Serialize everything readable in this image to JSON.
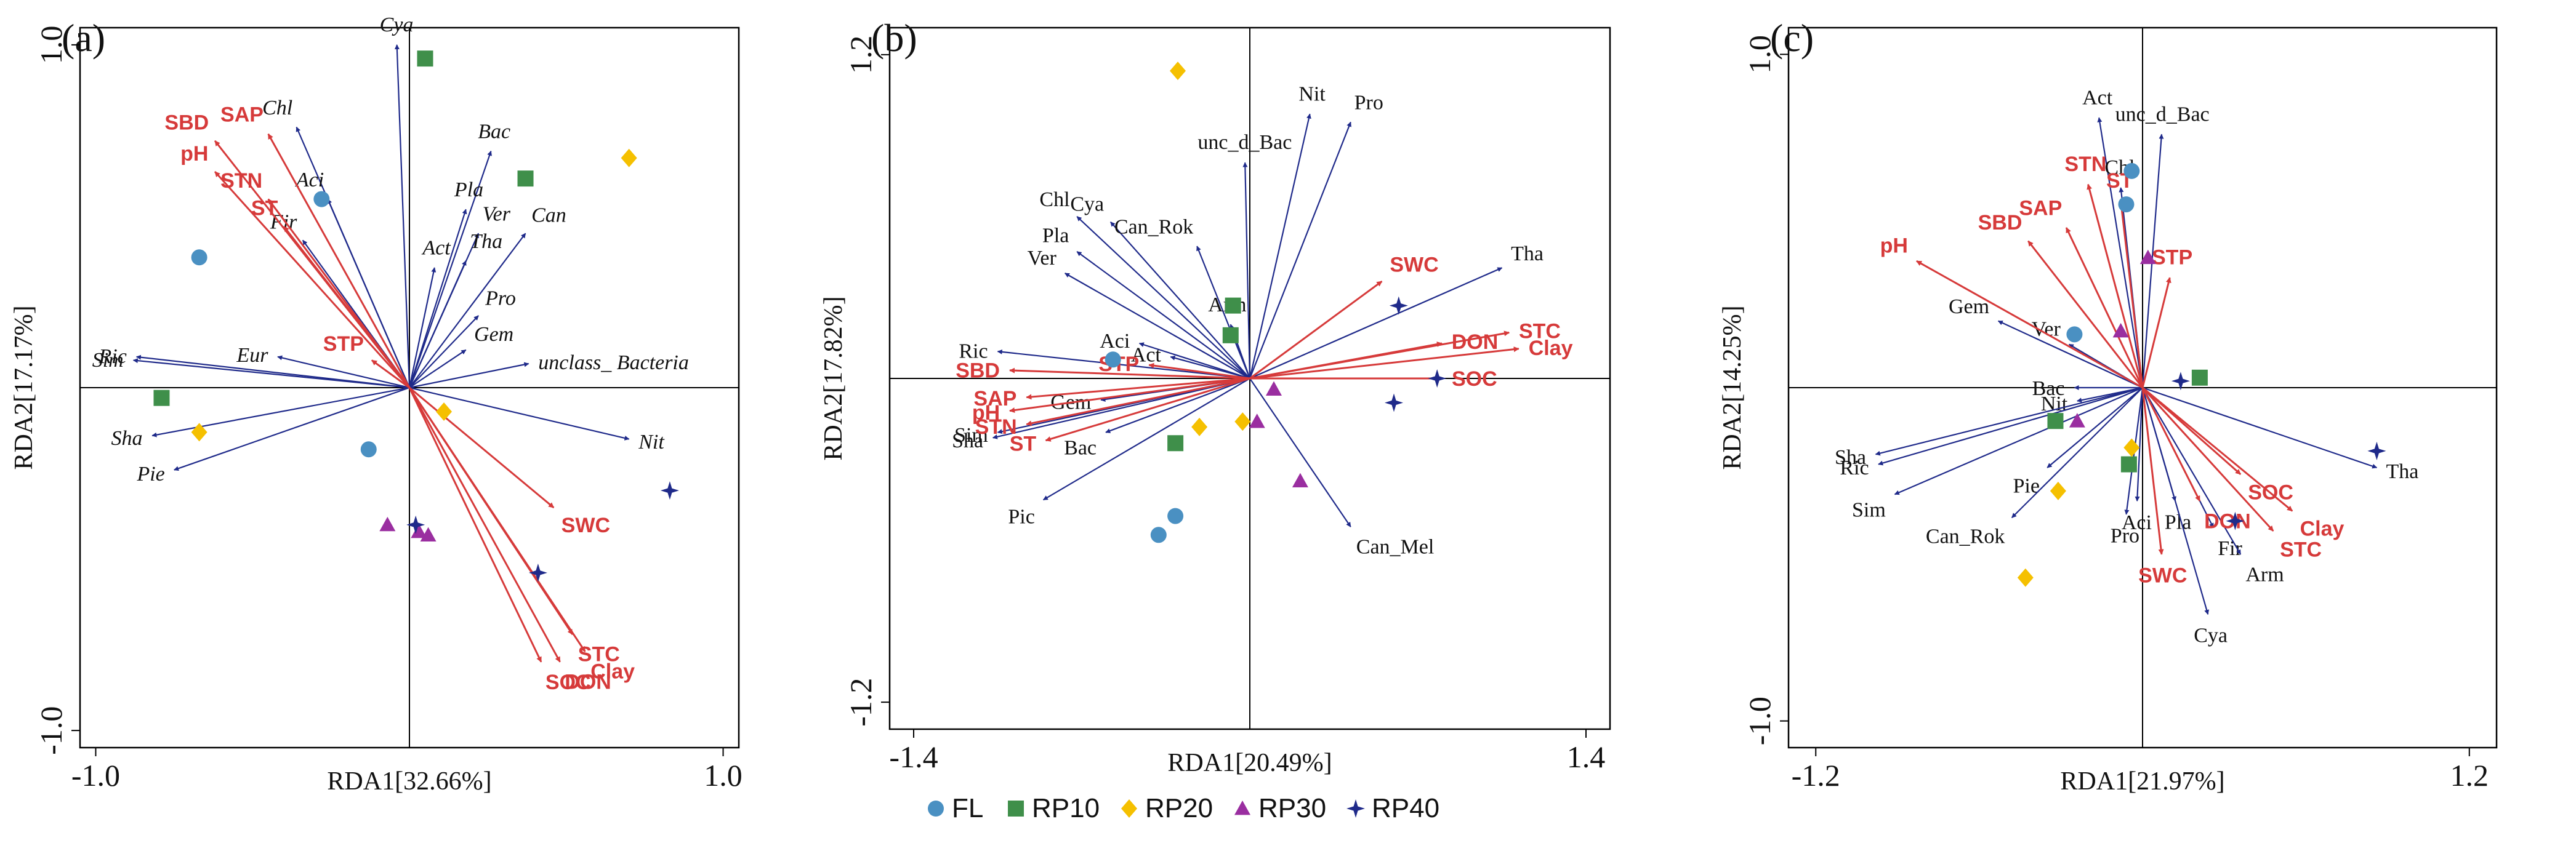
{
  "colors": {
    "env": "#d63a3a",
    "species": "#1f2a8a",
    "FL": "#4a90c2",
    "RP10": "#3f8f4a",
    "RP20": "#f5c000",
    "RP30": "#9a2ea0",
    "RP40": "#1f2a8a"
  },
  "legend": [
    {
      "label": "FL",
      "shape": "circle",
      "color": "#4a90c2"
    },
    {
      "label": "RP10",
      "shape": "square",
      "color": "#3f8f4a"
    },
    {
      "label": "RP20",
      "shape": "diamond",
      "color": "#f5c000"
    },
    {
      "label": "RP30",
      "shape": "triangle",
      "color": "#9a2ea0"
    },
    {
      "label": "RP40",
      "shape": "star",
      "color": "#1f2a8a"
    }
  ],
  "chart_data": [
    {
      "type": "scatter",
      "panel_label": "(a)",
      "xlabel": "RDA1[32.66%]",
      "ylabel": "RDA2[17.17%]",
      "xlim": [
        -1.05,
        1.05
      ],
      "ylim": [
        -1.05,
        1.05
      ],
      "xticks": [
        {
          "v": -1.0,
          "t": "-1.0"
        },
        {
          "v": 1.0,
          "t": "1.0"
        }
      ],
      "yticks": [
        {
          "v": 1.0,
          "t": "1.0"
        },
        {
          "v": -1.0,
          "t": "-1.0"
        }
      ],
      "species_italic": true,
      "env_vectors": [
        {
          "name": "SBD",
          "x": -0.62,
          "y": 0.72
        },
        {
          "name": "SAP",
          "x": -0.45,
          "y": 0.74
        },
        {
          "name": "pH",
          "x": -0.62,
          "y": 0.63
        },
        {
          "name": "STN",
          "x": -0.45,
          "y": 0.55
        },
        {
          "name": "ST",
          "x": -0.4,
          "y": 0.47
        },
        {
          "name": "STP",
          "x": -0.12,
          "y": 0.08
        },
        {
          "name": "SWC",
          "x": 0.46,
          "y": -0.35
        },
        {
          "name": "STC",
          "x": 0.52,
          "y": -0.72
        },
        {
          "name": "Clay",
          "x": 0.56,
          "y": -0.77
        },
        {
          "name": "SOC",
          "x": 0.42,
          "y": -0.8
        },
        {
          "name": "DON",
          "x": 0.48,
          "y": -0.8
        }
      ],
      "species_vectors": [
        {
          "name": "Cya",
          "x": -0.04,
          "y": 1.0
        },
        {
          "name": "Chl",
          "x": -0.36,
          "y": 0.76
        },
        {
          "name": "Aci",
          "x": -0.26,
          "y": 0.55
        },
        {
          "name": "Fir",
          "x": -0.34,
          "y": 0.43
        },
        {
          "name": "Bac",
          "x": 0.26,
          "y": 0.69
        },
        {
          "name": "Pla",
          "x": 0.18,
          "y": 0.52
        },
        {
          "name": "Act",
          "x": 0.08,
          "y": 0.35
        },
        {
          "name": "Ver",
          "x": 0.22,
          "y": 0.45
        },
        {
          "name": "Tha",
          "x": 0.18,
          "y": 0.37
        },
        {
          "name": "Can",
          "x": 0.37,
          "y": 0.45
        },
        {
          "name": "Pro",
          "x": 0.22,
          "y": 0.21
        },
        {
          "name": "Gem",
          "x": 0.18,
          "y": 0.11
        },
        {
          "name": "unclass_ Bacteria",
          "x": 0.38,
          "y": 0.07
        },
        {
          "name": "Eur",
          "x": -0.42,
          "y": 0.09
        },
        {
          "name": "Ric",
          "x": -0.87,
          "y": 0.09
        },
        {
          "name": "Sim",
          "x": -0.88,
          "y": 0.08
        },
        {
          "name": "Nit",
          "x": 0.7,
          "y": -0.15
        },
        {
          "name": "Sha",
          "x": -0.82,
          "y": -0.14
        },
        {
          "name": "Pie",
          "x": -0.75,
          "y": -0.24
        }
      ],
      "samples": [
        {
          "group": "FL",
          "x": -0.67,
          "y": 0.38
        },
        {
          "group": "FL",
          "x": -0.28,
          "y": 0.55
        },
        {
          "group": "FL",
          "x": -0.13,
          "y": -0.18
        },
        {
          "group": "RP10",
          "x": 0.05,
          "y": 0.96
        },
        {
          "group": "RP10",
          "x": 0.37,
          "y": 0.61
        },
        {
          "group": "RP10",
          "x": -0.79,
          "y": -0.03
        },
        {
          "group": "RP20",
          "x": 0.7,
          "y": 0.67
        },
        {
          "group": "RP20",
          "x": -0.67,
          "y": -0.13
        },
        {
          "group": "RP20",
          "x": 0.11,
          "y": -0.07
        },
        {
          "group": "RP30",
          "x": -0.07,
          "y": -0.4
        },
        {
          "group": "RP30",
          "x": 0.03,
          "y": -0.42
        },
        {
          "group": "RP30",
          "x": 0.06,
          "y": -0.43
        },
        {
          "group": "RP40",
          "x": 0.02,
          "y": -0.4
        },
        {
          "group": "RP40",
          "x": 0.41,
          "y": -0.54
        },
        {
          "group": "RP40",
          "x": 0.83,
          "y": -0.3
        }
      ]
    },
    {
      "type": "scatter",
      "panel_label": "(b)",
      "xlabel": "RDA1[20.49%]",
      "ylabel": "RDA2[17.82%]",
      "xlim": [
        -1.5,
        1.5
      ],
      "ylim": [
        -1.3,
        1.3
      ],
      "xticks": [
        {
          "v": -1.4,
          "t": "-1.4"
        },
        {
          "v": 1.4,
          "t": "1.4"
        }
      ],
      "yticks": [
        {
          "v": 1.2,
          "t": "1.2"
        },
        {
          "v": -1.2,
          "t": "-1.2"
        }
      ],
      "species_italic": false,
      "env_vectors": [
        {
          "name": "STP",
          "x": -0.42,
          "y": 0.05
        },
        {
          "name": "SBD",
          "x": -1.0,
          "y": 0.03
        },
        {
          "name": "SAP",
          "x": -0.93,
          "y": -0.07
        },
        {
          "name": "pH",
          "x": -1.0,
          "y": -0.12
        },
        {
          "name": "STN",
          "x": -0.93,
          "y": -0.17
        },
        {
          "name": "ST",
          "x": -0.85,
          "y": -0.23
        },
        {
          "name": "SWC",
          "x": 0.55,
          "y": 0.36
        },
        {
          "name": "DON",
          "x": 0.8,
          "y": 0.13
        },
        {
          "name": "STC",
          "x": 1.08,
          "y": 0.17
        },
        {
          "name": "Clay",
          "x": 1.12,
          "y": 0.11
        },
        {
          "name": "SOC",
          "x": 0.8,
          "y": 0.0
        }
      ],
      "species_vectors": [
        {
          "name": "Ric",
          "x": -1.05,
          "y": 0.1
        },
        {
          "name": "Sim",
          "x": -1.05,
          "y": -0.2
        },
        {
          "name": "Sha",
          "x": -1.07,
          "y": -0.22
        },
        {
          "name": "Pic",
          "x": -0.86,
          "y": -0.45
        },
        {
          "name": "Gem",
          "x": -0.62,
          "y": -0.08
        },
        {
          "name": "Bac",
          "x": -0.6,
          "y": -0.2
        },
        {
          "name": "Aci",
          "x": -0.46,
          "y": 0.13
        },
        {
          "name": "Act",
          "x": -0.33,
          "y": 0.08
        },
        {
          "name": "Chl",
          "x": -0.72,
          "y": 0.6
        },
        {
          "name": "Cya",
          "x": -0.58,
          "y": 0.58
        },
        {
          "name": "Pla",
          "x": -0.72,
          "y": 0.47
        },
        {
          "name": "Ver",
          "x": -0.77,
          "y": 0.39
        },
        {
          "name": "Can_Rok",
          "x": -0.22,
          "y": 0.49
        },
        {
          "name": "Arm",
          "x": -0.08,
          "y": 0.2
        },
        {
          "name": "unc_d_Bac",
          "x": -0.02,
          "y": 0.8
        },
        {
          "name": "Nit",
          "x": 0.25,
          "y": 0.98
        },
        {
          "name": "Pro",
          "x": 0.42,
          "y": 0.95
        },
        {
          "name": "Tha",
          "x": 1.05,
          "y": 0.41
        },
        {
          "name": "Can_Mel",
          "x": 0.42,
          "y": -0.55
        }
      ],
      "samples": [
        {
          "group": "FL",
          "x": -0.57,
          "y": 0.07
        },
        {
          "group": "FL",
          "x": -0.38,
          "y": -0.58
        },
        {
          "group": "FL",
          "x": -0.31,
          "y": -0.51
        },
        {
          "group": "RP10",
          "x": -0.07,
          "y": 0.27
        },
        {
          "group": "RP10",
          "x": -0.08,
          "y": 0.16
        },
        {
          "group": "RP10",
          "x": -0.31,
          "y": -0.24
        },
        {
          "group": "RP20",
          "x": -0.3,
          "y": 1.14
        },
        {
          "group": "RP20",
          "x": -0.21,
          "y": -0.18
        },
        {
          "group": "RP20",
          "x": -0.03,
          "y": -0.16
        },
        {
          "group": "RP30",
          "x": 0.1,
          "y": -0.04
        },
        {
          "group": "RP30",
          "x": 0.03,
          "y": -0.16
        },
        {
          "group": "RP30",
          "x": 0.21,
          "y": -0.38
        },
        {
          "group": "RP40",
          "x": 0.62,
          "y": 0.27
        },
        {
          "group": "RP40",
          "x": 0.6,
          "y": -0.09
        },
        {
          "group": "RP40",
          "x": 0.78,
          "y": 0.0
        }
      ]
    },
    {
      "type": "scatter",
      "panel_label": "(c)",
      "xlabel": "RDA1[21.97%]",
      "ylabel": "RDA2[14.25%]",
      "xlim": [
        -1.3,
        1.3
      ],
      "ylim": [
        -1.08,
        1.08
      ],
      "xticks": [
        {
          "v": -1.2,
          "t": "-1.2"
        },
        {
          "v": 1.2,
          "t": "1.2"
        }
      ],
      "yticks": [
        {
          "v": 1.0,
          "t": "1.0"
        },
        {
          "v": -1.0,
          "t": "-1.0"
        }
      ],
      "species_italic": false,
      "env_vectors": [
        {
          "name": "STN",
          "x": -0.2,
          "y": 0.61
        },
        {
          "name": "ST",
          "x": -0.08,
          "y": 0.56
        },
        {
          "name": "SAP",
          "x": -0.28,
          "y": 0.48
        },
        {
          "name": "SBD",
          "x": -0.42,
          "y": 0.44
        },
        {
          "name": "pH",
          "x": -0.83,
          "y": 0.38
        },
        {
          "name": "STP",
          "x": 0.1,
          "y": 0.33
        },
        {
          "name": "SOC",
          "x": 0.36,
          "y": -0.26
        },
        {
          "name": "Clay",
          "x": 0.55,
          "y": -0.37
        },
        {
          "name": "STC",
          "x": 0.48,
          "y": -0.43
        },
        {
          "name": "DON",
          "x": 0.21,
          "y": -0.34
        },
        {
          "name": "SWC",
          "x": 0.07,
          "y": -0.5
        }
      ],
      "species_vectors": [
        {
          "name": "Act",
          "x": -0.16,
          "y": 0.81
        },
        {
          "name": "unc_d_Bac",
          "x": 0.07,
          "y": 0.76
        },
        {
          "name": "Chl",
          "x": -0.08,
          "y": 0.6
        },
        {
          "name": "Gem",
          "x": -0.53,
          "y": 0.2
        },
        {
          "name": "Ver",
          "x": -0.27,
          "y": 0.13
        },
        {
          "name": "Bac",
          "x": -0.25,
          "y": 0.0
        },
        {
          "name": "Nit",
          "x": -0.24,
          "y": -0.04
        },
        {
          "name": "Sha",
          "x": -0.98,
          "y": -0.2
        },
        {
          "name": "Ric",
          "x": -0.97,
          "y": -0.23
        },
        {
          "name": "Sim",
          "x": -0.91,
          "y": -0.32
        },
        {
          "name": "Pie",
          "x": -0.35,
          "y": -0.24
        },
        {
          "name": "Can_Rok",
          "x": -0.48,
          "y": -0.39
        },
        {
          "name": "Pro",
          "x": -0.06,
          "y": -0.38
        },
        {
          "name": "Aci",
          "x": -0.02,
          "y": -0.34
        },
        {
          "name": "Pla",
          "x": 0.12,
          "y": -0.34
        },
        {
          "name": "Fir",
          "x": 0.26,
          "y": -0.42
        },
        {
          "name": "Arm",
          "x": 0.36,
          "y": -0.5
        },
        {
          "name": "Cya",
          "x": 0.24,
          "y": -0.68
        },
        {
          "name": "Tha",
          "x": 0.86,
          "y": -0.24
        }
      ],
      "samples": [
        {
          "group": "FL",
          "x": -0.04,
          "y": 0.65
        },
        {
          "group": "FL",
          "x": -0.06,
          "y": 0.55
        },
        {
          "group": "FL",
          "x": -0.25,
          "y": 0.16
        },
        {
          "group": "RP10",
          "x": 0.21,
          "y": 0.03
        },
        {
          "group": "RP10",
          "x": -0.32,
          "y": -0.1
        },
        {
          "group": "RP10",
          "x": -0.05,
          "y": -0.23
        },
        {
          "group": "RP20",
          "x": -0.04,
          "y": -0.18
        },
        {
          "group": "RP20",
          "x": -0.31,
          "y": -0.31
        },
        {
          "group": "RP20",
          "x": -0.43,
          "y": -0.57
        },
        {
          "group": "RP30",
          "x": 0.02,
          "y": 0.39
        },
        {
          "group": "RP30",
          "x": -0.08,
          "y": 0.17
        },
        {
          "group": "RP30",
          "x": -0.24,
          "y": -0.1
        },
        {
          "group": "RP40",
          "x": 0.14,
          "y": 0.02
        },
        {
          "group": "RP40",
          "x": 0.86,
          "y": -0.19
        },
        {
          "group": "RP40",
          "x": 0.34,
          "y": -0.4
        }
      ]
    }
  ]
}
